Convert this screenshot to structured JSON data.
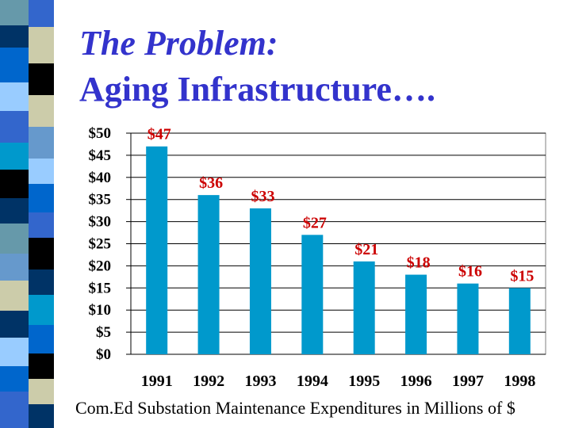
{
  "title": {
    "line1": "The Problem:",
    "line2": "Aging Infrastructure…."
  },
  "colors": {
    "title": "#3333cc",
    "bar": "#0099cc",
    "data_label": "#cc0000",
    "stripe": [
      "#6699aa",
      "#003366",
      "#ccccaa",
      "#0066cc",
      "#000000",
      "#99ccff",
      "#3366cc",
      "#6699cc",
      "#0099cc"
    ]
  },
  "chart_data": {
    "type": "bar",
    "title": "",
    "categories": [
      "1991",
      "1992",
      "1993",
      "1994",
      "1995",
      "1996",
      "1997",
      "1998"
    ],
    "values": [
      47,
      36,
      33,
      27,
      21,
      18,
      16,
      15
    ],
    "data_labels": [
      "$47",
      "$36",
      "$33",
      "$27",
      "$21",
      "$18",
      "$16",
      "$15"
    ],
    "ylim": [
      0,
      50
    ],
    "yticks": [
      0,
      5,
      10,
      15,
      20,
      25,
      30,
      35,
      40,
      45,
      50
    ],
    "ytick_labels": [
      "$0",
      "$5",
      "$10",
      "$15",
      "$20",
      "$25",
      "$30",
      "$35",
      "$40",
      "$45",
      "$50"
    ],
    "xlabel": "",
    "ylabel": "",
    "grid": true
  },
  "caption": "Com.Ed Substation Maintenance Expenditures in Millions of $"
}
